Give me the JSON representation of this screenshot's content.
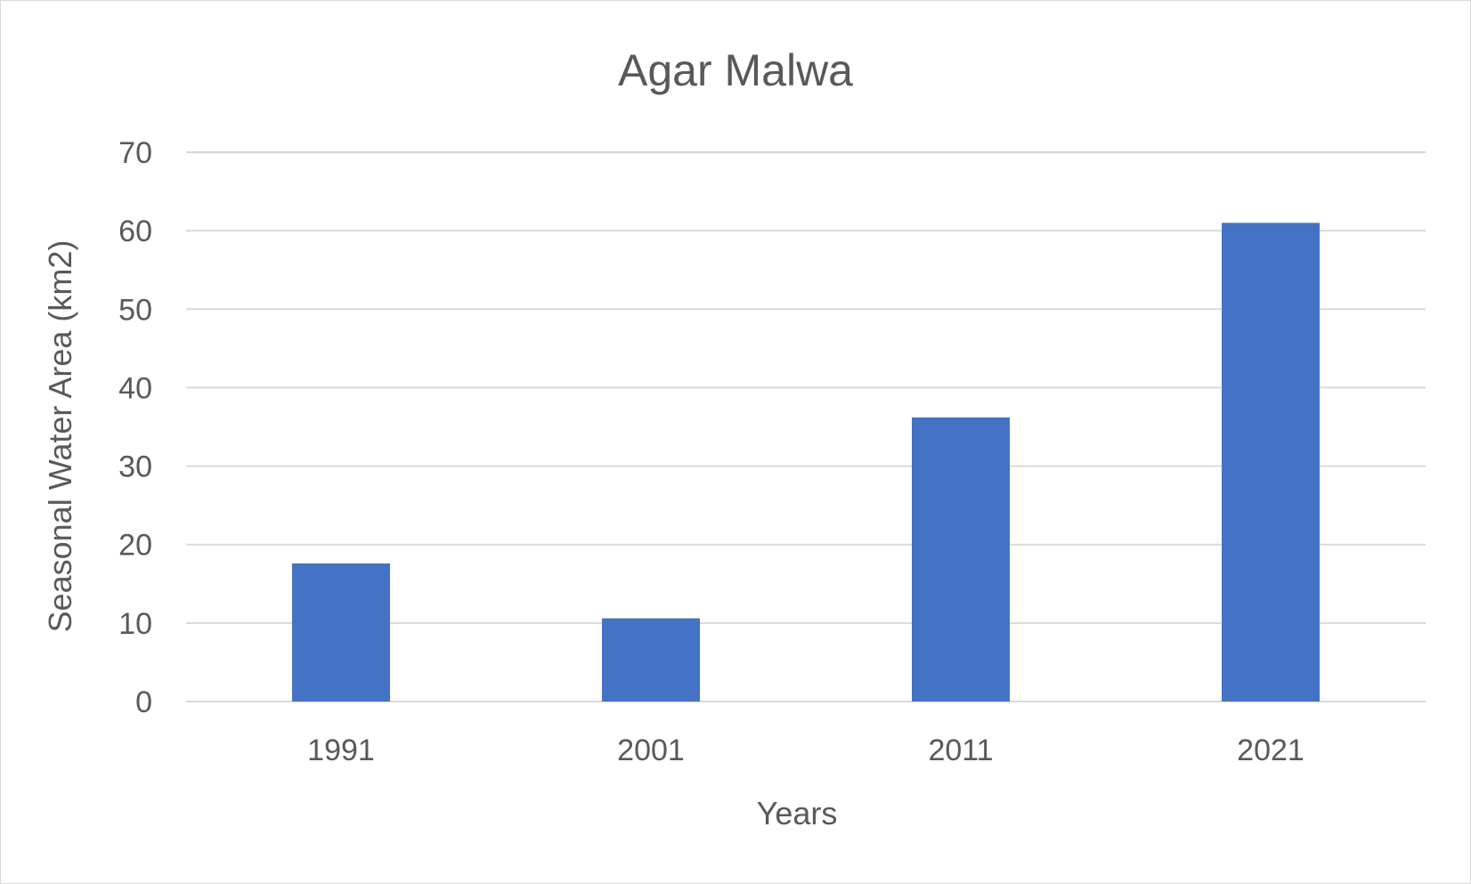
{
  "chart_data": {
    "type": "bar",
    "title": "Agar Malwa",
    "xlabel": "Years",
    "ylabel": "Seasonal Water Area  (km2)",
    "categories": [
      "1991",
      "2001",
      "2011",
      "2021"
    ],
    "values": [
      17.6,
      10.6,
      36.2,
      61.0
    ],
    "ylim": [
      0,
      70
    ],
    "yticks": [
      "0",
      "10",
      "20",
      "30",
      "40",
      "50",
      "60",
      "70"
    ],
    "grid": true,
    "legend": "none",
    "bar_color": "#4472c4",
    "grid_color": "#d9d9d9",
    "text_color": "#595959"
  }
}
